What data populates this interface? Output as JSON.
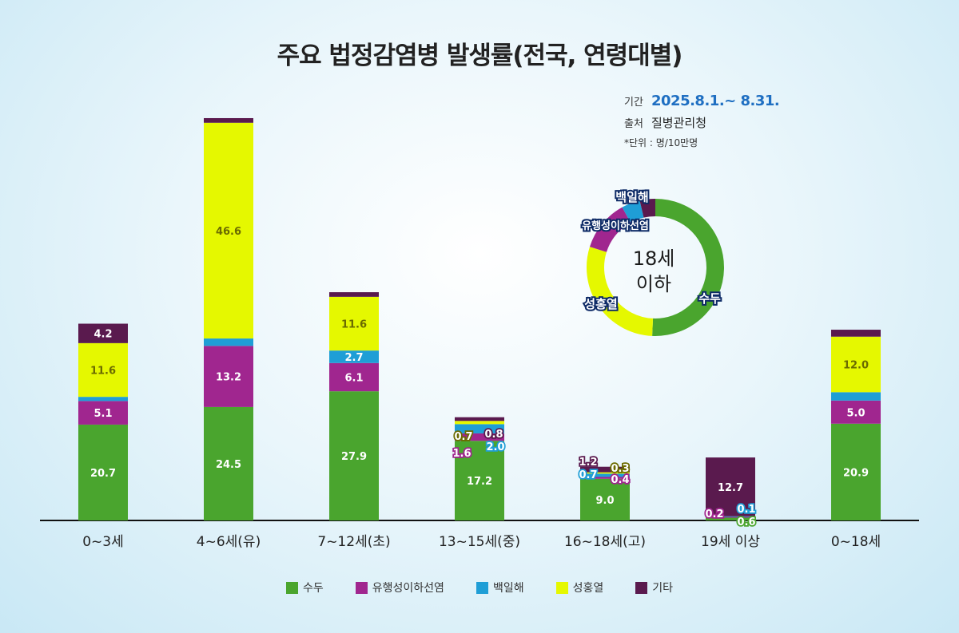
{
  "title": "주요 법정감염병 발생률(전국, 연령대별)",
  "info": {
    "period_label": "기간",
    "period_value": "2025.8.1.~ 8.31.",
    "source_label": "출처",
    "source_value": "질병관리청",
    "unit": "*단위 : 명/10만명"
  },
  "colors": {
    "수두": "#4aa52e",
    "유행성이하선염": "#a0268f",
    "백일해": "#1f9ed6",
    "성홍열": "#e5f800",
    "기타": "#5a1a4e"
  },
  "chart_data": {
    "type": "bar",
    "stacked": true,
    "title": "주요 법정감염병 발생률(전국, 연령대별)",
    "ylabel": "명/10만명",
    "categories": [
      "0~3세",
      "4~6세(유)",
      "7~12세(초)",
      "13~15세(중)",
      "16~18세(고)",
      "19세 이상",
      "0~18세"
    ],
    "series": [
      {
        "name": "수두",
        "values": [
          20.7,
          24.5,
          27.9,
          17.2,
          9.0,
          0.6,
          20.9
        ]
      },
      {
        "name": "유행성이하선염",
        "values": [
          5.1,
          13.2,
          6.1,
          1.6,
          0.4,
          0.2,
          5.0
        ]
      },
      {
        "name": "백일해",
        "values": [
          0.9,
          1.6,
          2.7,
          2.0,
          0.7,
          0.1,
          1.8
        ]
      },
      {
        "name": "성홍열",
        "values": [
          11.6,
          46.6,
          11.6,
          0.7,
          0.3,
          0.0,
          12.0
        ]
      },
      {
        "name": "기타",
        "values": [
          4.2,
          1.0,
          1.0,
          0.8,
          1.2,
          12.7,
          1.5
        ]
      }
    ],
    "labels": [
      [
        "20.7",
        "5.1",
        "0.9",
        "11.6",
        "4.2"
      ],
      [
        "24.5",
        "13.2",
        "1.6",
        "46.6",
        "1.0"
      ],
      [
        "27.9",
        "6.1",
        "2.7",
        "11.6",
        "1.0"
      ],
      [
        "17.2",
        "1.6",
        "2.0",
        "0.7",
        "0.8"
      ],
      [
        "9.0",
        "0.4",
        "0.7",
        "0.3",
        "1.2"
      ],
      [
        "0.6",
        "0.2",
        "0.1",
        "",
        "12.7"
      ],
      [
        "20.9",
        "5.0",
        "1.8",
        "12.0",
        "1.5"
      ]
    ],
    "ylim": [
      0,
      90
    ],
    "inset_donut": {
      "type": "pie",
      "center_label": "18세 이하",
      "slices": [
        {
          "name": "수두",
          "value": 20.9
        },
        {
          "name": "성홍열",
          "value": 12.0
        },
        {
          "name": "유행성이하선염",
          "value": 5.0
        },
        {
          "name": "백일해",
          "value": 1.8
        },
        {
          "name": "기타",
          "value": 1.5
        }
      ]
    }
  }
}
